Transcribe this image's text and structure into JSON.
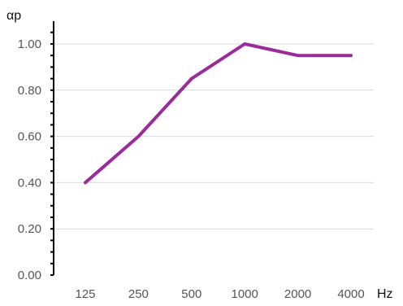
{
  "chart_data": {
    "type": "line",
    "title": "",
    "xlabel": "Hz",
    "ylabel": "αp",
    "categories": [
      "125",
      "250",
      "500",
      "1000",
      "2000",
      "4000"
    ],
    "series": [
      {
        "values": [
          0.4,
          0.6,
          0.85,
          1.0,
          0.95,
          0.95
        ]
      }
    ],
    "ylim": [
      0,
      1.0
    ],
    "yticks": [
      "0.00",
      "0.20",
      "0.40",
      "0.60",
      "0.80",
      "1.00"
    ],
    "grid": true,
    "legend": "none",
    "colors": {
      "series": "#9b2a9b",
      "grid": "#d9d9d9",
      "axis": "#000000"
    }
  }
}
